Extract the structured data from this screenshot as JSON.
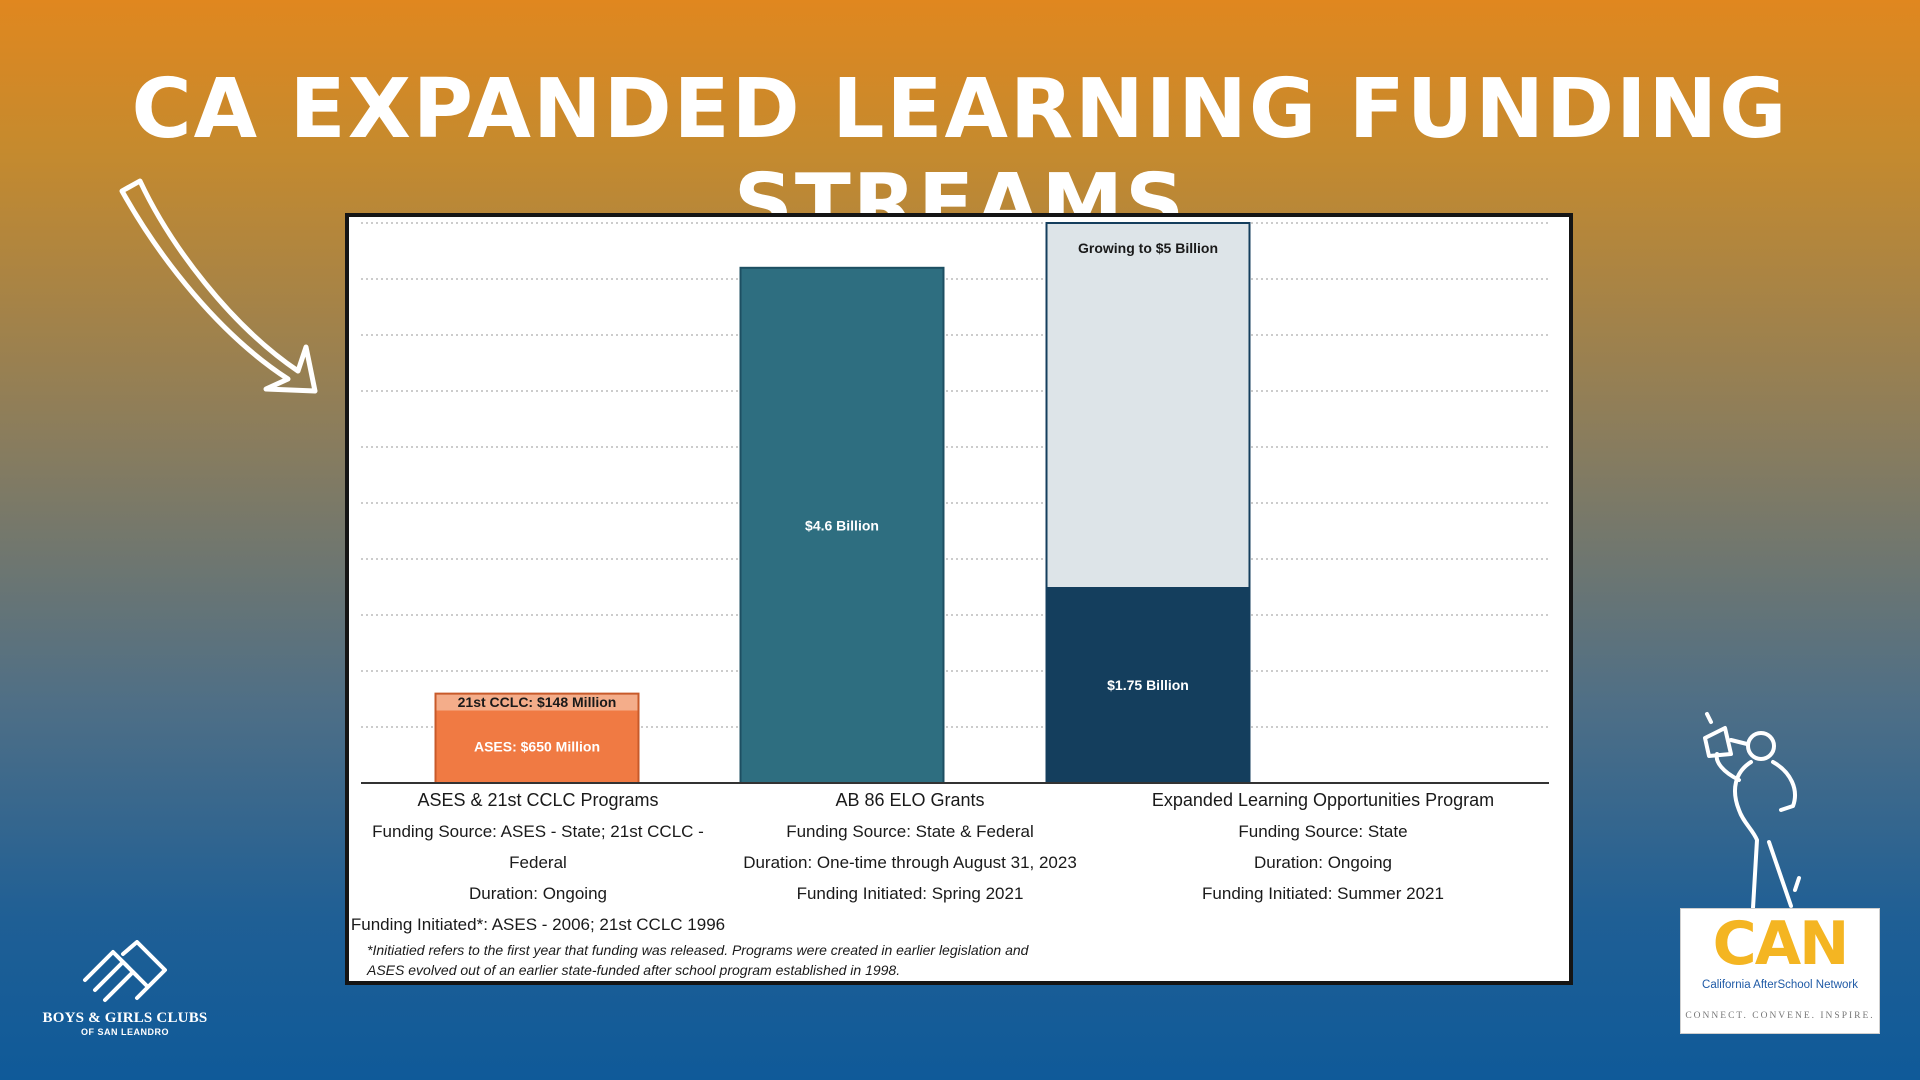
{
  "title": "CA EXPANDED LEARNING FUNDING STREAMS",
  "chart_data": {
    "type": "bar",
    "stacked": true,
    "categories": [
      "ASES & 21st CCLC Programs",
      "AB 86 ELO Grants",
      "Expanded Learning Opportunities Program"
    ],
    "unit": "Billion USD",
    "ylim": [
      0,
      5.0
    ],
    "grid": true,
    "segments": [
      {
        "category_index": 0,
        "base": 0,
        "value": 0.65,
        "label": "ASES: $650 Million",
        "color": "#f07a43",
        "label_color": "#ffffff"
      },
      {
        "category_index": 0,
        "base": 0.65,
        "value": 0.148,
        "label": "21st CCLC: $148 Million",
        "color": "#f4ad8a",
        "label_color": "#1a1a1a"
      },
      {
        "category_index": 1,
        "base": 0,
        "value": 4.6,
        "label": "$4.6 Billion",
        "color": "#2e6e80",
        "label_color": "#ffffff"
      },
      {
        "category_index": 2,
        "base": 0,
        "value": 1.75,
        "label": "$1.75 Billion",
        "color": "#143e5d",
        "label_color": "#ffffff"
      },
      {
        "category_index": 2,
        "base": 1.75,
        "value": 3.25,
        "label": "Growing to $5 Billion",
        "color": "#dde4e8",
        "label_color": "#1a1a1a",
        "label_position": "top"
      }
    ],
    "category_details": [
      {
        "name": "ASES & 21st CCLC Programs",
        "source": "Funding Source: ASES - State; 21st CCLC - Federal",
        "duration": "Duration: Ongoing",
        "initiated": "Funding Initiated*: ASES - 2006; 21st CCLC 1996"
      },
      {
        "name": "AB 86 ELO Grants",
        "source": "Funding Source: State & Federal",
        "duration": "Duration: One-time through August 31, 2023",
        "initiated": "Funding Initiated: Spring 2021"
      },
      {
        "name": "Expanded Learning Opportunities Program",
        "source": "Funding Source: State",
        "duration": "Duration: Ongoing",
        "initiated": "Funding Initiated: Summer 2021"
      }
    ],
    "footnote_line1": "*Initiatied refers to the first year that funding was released. Programs were created in earlier legislation and",
    "footnote_line2": "ASES evolved out of an earlier state-funded after school program established in 1998."
  },
  "logos": {
    "bgc_name": "BOYS & GIRLS CLUBS",
    "bgc_sub": "OF SAN LEANDRO",
    "can_word": "CAN",
    "can_full": "California AfterSchool Network",
    "can_tagline": "CONNECT.  CONVENE.  INSPIRE."
  },
  "colors": {
    "bg_top": "#e0871f",
    "bg_bottom": "#0f5a99",
    "can_gold": "#f4b522",
    "can_blue": "#1f5aa6"
  },
  "icons": [
    "arrow-icon",
    "boys-girls-clubs-logo-icon",
    "megaphone-person-icon"
  ]
}
